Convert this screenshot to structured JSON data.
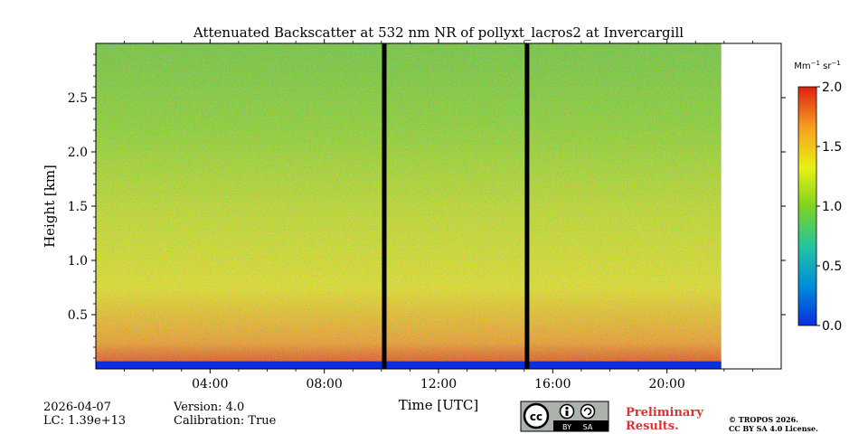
{
  "chart_data": {
    "type": "heatmap",
    "title": "Attenuated Backscatter at 532 nm NR of pollyxt_lacros2 at Invercargill",
    "xlabel": "Time [UTC]",
    "ylabel": "Height [km]",
    "xlim": [
      0,
      24
    ],
    "ylim": [
      0,
      3.0
    ],
    "x_ticks": [
      {
        "value": 4,
        "label": "04:00"
      },
      {
        "value": 8,
        "label": "08:00"
      },
      {
        "value": 12,
        "label": "12:00"
      },
      {
        "value": 16,
        "label": "16:00"
      },
      {
        "value": 20,
        "label": "20:00"
      }
    ],
    "y_ticks": [
      {
        "value": 0.5,
        "label": "0.5"
      },
      {
        "value": 1.0,
        "label": "1.0"
      },
      {
        "value": 1.5,
        "label": "1.5"
      },
      {
        "value": 2.0,
        "label": "2.0"
      },
      {
        "value": 2.5,
        "label": "2.5"
      }
    ],
    "data_end_hour": 21.9,
    "missing_data_bars_hours": [
      10.1,
      15.1
    ],
    "colorbar": {
      "unit_label": "Mm",
      "unit_exp": "−1",
      "unit_label2": " sr",
      "unit_exp2": "−1",
      "range": [
        0.0,
        2.0
      ],
      "ticks": [
        {
          "value": 0.0,
          "label": "0.0"
        },
        {
          "value": 0.5,
          "label": "0.5"
        },
        {
          "value": 1.0,
          "label": "1.0"
        },
        {
          "value": 1.5,
          "label": "1.5"
        },
        {
          "value": 2.0,
          "label": "2.0"
        }
      ],
      "colormap": [
        "#0a2ee0",
        "#0090d8",
        "#22c4a0",
        "#7ed320",
        "#e8f014",
        "#f5a020",
        "#e02010"
      ]
    }
  },
  "footer": {
    "date": "2026-04-07",
    "lc": "LC: 1.39e+13",
    "version": "Version: 4.0",
    "calibration": "Calibration: True",
    "preliminary_line1": "Preliminary",
    "preliminary_line2": "Results.",
    "copyright_line1": "© TROPOS 2026.",
    "copyright_line2": "CC BY SA 4.0 License.",
    "cc_badge_by": "BY",
    "cc_badge_sa": "SA",
    "preliminary_color": "#e03030"
  }
}
